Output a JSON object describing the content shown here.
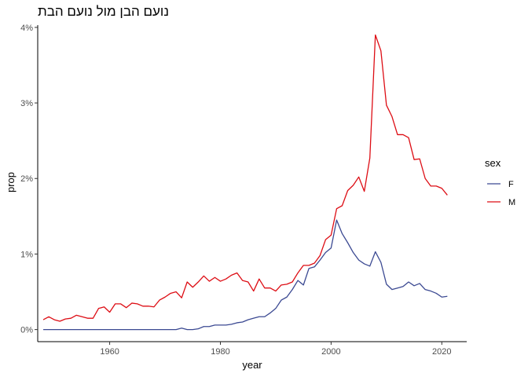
{
  "chart_data": {
    "type": "line",
    "title": "נועם הבן מול נועם הבת",
    "xlabel": "year",
    "ylabel": "prop",
    "xlim": [
      1947,
      2024.5
    ],
    "ylim": [
      -0.0016,
      0.0403
    ],
    "x_ticks": [
      1960,
      1980,
      2000,
      2020
    ],
    "y_ticks": [
      {
        "value": 0,
        "label": "0%"
      },
      {
        "value": 0.01,
        "label": "1%"
      },
      {
        "value": 0.02,
        "label": "2%"
      },
      {
        "value": 0.03,
        "label": "3%"
      },
      {
        "value": 0.04,
        "label": "4%"
      }
    ],
    "grid": false,
    "legend": {
      "title": "sex",
      "placement": "right"
    },
    "series": [
      {
        "name": "F",
        "color": "#3B4992",
        "points": [
          [
            1948,
            0
          ],
          [
            1949,
            0
          ],
          [
            1950,
            0
          ],
          [
            1951,
            0
          ],
          [
            1952,
            0
          ],
          [
            1953,
            0
          ],
          [
            1954,
            0
          ],
          [
            1955,
            0
          ],
          [
            1956,
            0
          ],
          [
            1957,
            0
          ],
          [
            1958,
            0
          ],
          [
            1959,
            0
          ],
          [
            1960,
            0
          ],
          [
            1961,
            0
          ],
          [
            1962,
            0
          ],
          [
            1963,
            0
          ],
          [
            1964,
            0
          ],
          [
            1965,
            0
          ],
          [
            1966,
            0
          ],
          [
            1967,
            0
          ],
          [
            1968,
            0
          ],
          [
            1969,
            0
          ],
          [
            1970,
            0
          ],
          [
            1971,
            0
          ],
          [
            1972,
            0
          ],
          [
            1973,
            0.0002
          ],
          [
            1974,
            0
          ],
          [
            1975,
            0
          ],
          [
            1976,
            0.0001
          ],
          [
            1977,
            0.0004
          ],
          [
            1978,
            0.0004
          ],
          [
            1979,
            0.0006
          ],
          [
            1980,
            0.0006
          ],
          [
            1981,
            0.0006
          ],
          [
            1982,
            0.0007
          ],
          [
            1983,
            0.0009
          ],
          [
            1984,
            0.001
          ],
          [
            1985,
            0.0013
          ],
          [
            1986,
            0.0015
          ],
          [
            1987,
            0.0017
          ],
          [
            1988,
            0.0017
          ],
          [
            1989,
            0.0022
          ],
          [
            1990,
            0.0028
          ],
          [
            1991,
            0.0039
          ],
          [
            1992,
            0.0043
          ],
          [
            1993,
            0.0053
          ],
          [
            1994,
            0.0065
          ],
          [
            1995,
            0.0059
          ],
          [
            1996,
            0.0081
          ],
          [
            1997,
            0.0083
          ],
          [
            1998,
            0.0092
          ],
          [
            1999,
            0.0102
          ],
          [
            2000,
            0.0108
          ],
          [
            2001,
            0.0145
          ],
          [
            2002,
            0.0127
          ],
          [
            2003,
            0.0115
          ],
          [
            2004,
            0.0102
          ],
          [
            2005,
            0.0092
          ],
          [
            2006,
            0.0087
          ],
          [
            2007,
            0.0084
          ],
          [
            2008,
            0.0103
          ],
          [
            2009,
            0.0089
          ],
          [
            2010,
            0.006
          ],
          [
            2011,
            0.0053
          ],
          [
            2012,
            0.0055
          ],
          [
            2013,
            0.0057
          ],
          [
            2014,
            0.0063
          ],
          [
            2015,
            0.0058
          ],
          [
            2016,
            0.0061
          ],
          [
            2017,
            0.0053
          ],
          [
            2018,
            0.0051
          ],
          [
            2019,
            0.0048
          ],
          [
            2020,
            0.0043
          ],
          [
            2021,
            0.0044
          ]
        ]
      },
      {
        "name": "M",
        "color": "#DD0D14",
        "points": [
          [
            1948,
            0.0013
          ],
          [
            1949,
            0.0017
          ],
          [
            1950,
            0.0013
          ],
          [
            1951,
            0.0011
          ],
          [
            1952,
            0.0014
          ],
          [
            1953,
            0.0015
          ],
          [
            1954,
            0.0019
          ],
          [
            1955,
            0.0017
          ],
          [
            1956,
            0.0015
          ],
          [
            1957,
            0.0015
          ],
          [
            1958,
            0.0028
          ],
          [
            1959,
            0.003
          ],
          [
            1960,
            0.0023
          ],
          [
            1961,
            0.0034
          ],
          [
            1962,
            0.0034
          ],
          [
            1963,
            0.0029
          ],
          [
            1964,
            0.0035
          ],
          [
            1965,
            0.0034
          ],
          [
            1966,
            0.0031
          ],
          [
            1967,
            0.0031
          ],
          [
            1968,
            0.003
          ],
          [
            1969,
            0.0039
          ],
          [
            1970,
            0.0043
          ],
          [
            1971,
            0.0048
          ],
          [
            1972,
            0.005
          ],
          [
            1973,
            0.0042
          ],
          [
            1974,
            0.0063
          ],
          [
            1975,
            0.0056
          ],
          [
            1976,
            0.0063
          ],
          [
            1977,
            0.0071
          ],
          [
            1978,
            0.0064
          ],
          [
            1979,
            0.0069
          ],
          [
            1980,
            0.0064
          ],
          [
            1981,
            0.0067
          ],
          [
            1982,
            0.0072
          ],
          [
            1983,
            0.0075
          ],
          [
            1984,
            0.0065
          ],
          [
            1985,
            0.0063
          ],
          [
            1986,
            0.0051
          ],
          [
            1987,
            0.0067
          ],
          [
            1988,
            0.0055
          ],
          [
            1989,
            0.0055
          ],
          [
            1990,
            0.0051
          ],
          [
            1991,
            0.0059
          ],
          [
            1992,
            0.006
          ],
          [
            1993,
            0.0063
          ],
          [
            1994,
            0.0075
          ],
          [
            1995,
            0.0085
          ],
          [
            1996,
            0.0085
          ],
          [
            1997,
            0.0088
          ],
          [
            1998,
            0.0098
          ],
          [
            1999,
            0.0119
          ],
          [
            2000,
            0.0125
          ],
          [
            2001,
            0.016
          ],
          [
            2002,
            0.0164
          ],
          [
            2003,
            0.0184
          ],
          [
            2004,
            0.0191
          ],
          [
            2005,
            0.0202
          ],
          [
            2006,
            0.0183
          ],
          [
            2007,
            0.0227
          ],
          [
            2008,
            0.039
          ],
          [
            2009,
            0.0369
          ],
          [
            2010,
            0.0297
          ],
          [
            2011,
            0.0282
          ],
          [
            2012,
            0.0258
          ],
          [
            2013,
            0.0258
          ],
          [
            2014,
            0.0254
          ],
          [
            2015,
            0.0225
          ],
          [
            2016,
            0.0226
          ],
          [
            2017,
            0.02
          ],
          [
            2018,
            0.019
          ],
          [
            2019,
            0.019
          ],
          [
            2020,
            0.0187
          ],
          [
            2021,
            0.0178
          ]
        ]
      }
    ]
  }
}
